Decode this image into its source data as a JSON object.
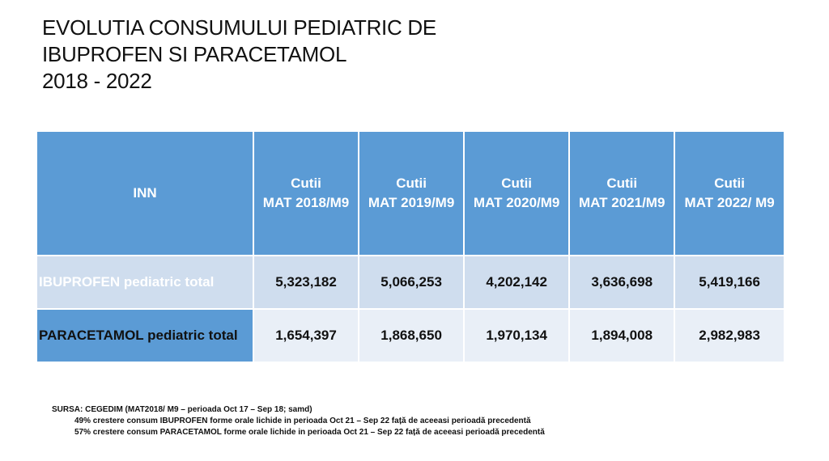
{
  "title": {
    "line1": "EVOLUTIA CONSUMULUI PEDIATRIC DE",
    "line2": "IBUPROFEN SI PARACETAMOL",
    "line3": "2018 - 2022"
  },
  "table": {
    "headers": [
      {
        "line1": "INN",
        "line2": ""
      },
      {
        "line1": "Cutii",
        "line2": "MAT 2018/M9"
      },
      {
        "line1": "Cutii",
        "line2": "MAT 2019/M9"
      },
      {
        "line1": "Cutii",
        "line2": "MAT 2020/M9"
      },
      {
        "line1": "Cutii",
        "line2": "MAT 2021/M9"
      },
      {
        "line1": "Cutii",
        "line2": "MAT 2022/ M9"
      }
    ],
    "rows": [
      {
        "label": "IBUPROFEN pediatric total",
        "values": [
          "5,323,182",
          "5,066,253",
          "4,202,142",
          "3,636,698",
          "5,419,166"
        ]
      },
      {
        "label": "PARACETAMOL pediatric total",
        "values": [
          "1,654,397",
          "1,868,650",
          "1,970,134",
          "1,894,008",
          "2,982,983"
        ]
      }
    ]
  },
  "source": {
    "line1": "SURSA: CEGEDIM (MAT2018/ M9 – perioada Oct 17 – Sep 18; samd)",
    "line2": "49% crestere consum IBUPROFEN forme orale lichide in perioada Oct 21 – Sep 22 față de aceeasi perioadă precedentă",
    "line3": "57% crestere consum PARACETAMOL forme orale lichide in perioada Oct 21 – Sep 22 față de aceeasi perioadă precedentă"
  },
  "colors": {
    "header": "#5B9BD5",
    "row1": "#CFDDEE",
    "row2": "#E9EFF7"
  }
}
